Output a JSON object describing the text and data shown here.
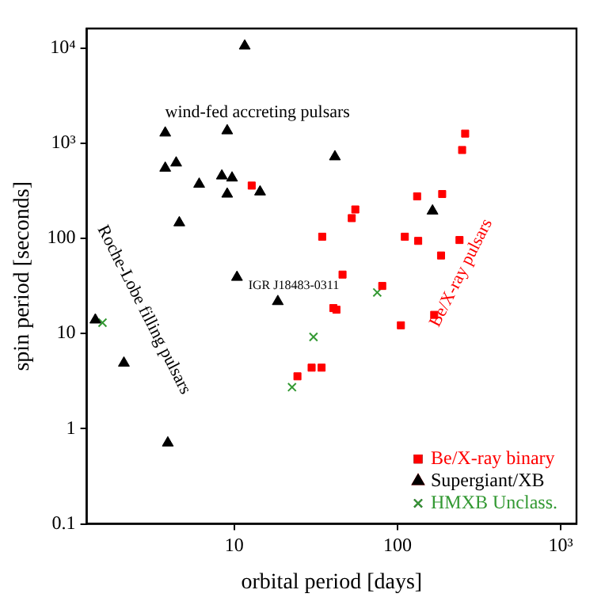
{
  "chart_data": {
    "type": "scatter",
    "xlabel": "orbital period [days]",
    "ylabel": "spin period [seconds]",
    "log": "xy",
    "grid": false,
    "legend": "bottom right",
    "xlim": [
      1.25,
      1250
    ],
    "xticks": [
      10,
      100,
      {
        "value": 1000,
        "label": "10³"
      }
    ],
    "ylim": [
      0.1,
      16000
    ],
    "yticks": [
      0.1,
      1,
      10,
      100,
      {
        "value": 1000,
        "label": "10³"
      },
      {
        "value": 10000,
        "label": "10⁴"
      }
    ],
    "series": [
      {
        "name": "Be/X-ray binary",
        "color": "#ff0000",
        "marker": "square",
        "x": [
          12.8,
          34.6,
          260,
          249,
          132,
          188,
          55.2,
          52.5,
          111,
          134,
          240,
          185,
          46.1,
          80.7,
          40.5,
          42.3,
          105,
          168,
          29.8,
          34.3,
          24.4
        ],
        "values": [
          358,
          104,
          1260,
          847,
          276,
          292,
          201,
          163,
          104,
          94,
          96,
          66,
          41.6,
          31.6,
          18.5,
          17.8,
          12.2,
          15.7,
          4.38,
          4.38,
          3.55
        ]
      },
      {
        "name": "Supergiant/XB",
        "color": "#000000",
        "marker": "triangle",
        "x": [
          11.6,
          3.78,
          9.06,
          3.78,
          4.41,
          6.1,
          8.4,
          9.7,
          9.06,
          14.4,
          4.61,
          10.4,
          18.5,
          41.4,
          164,
          1.41,
          2.11,
          3.92
        ],
        "values": [
          10500,
          1280,
          1350,
          547,
          620,
          371,
          453,
          431,
          292,
          308,
          146,
          39,
          21.7,
          720,
          194,
          13.9,
          4.9,
          0.71
        ]
      },
      {
        "name": "HMXB Unclass.",
        "color": "#339933",
        "marker": "cross",
        "x": [
          1.56,
          22.6,
          30.6,
          75.2
        ],
        "values": [
          13,
          2.73,
          9.2,
          27
        ]
      }
    ],
    "annotations": [
      "wind-fed accreting pulsars",
      "Roche-Lobe filling pulsars",
      "IGR J18483-0311",
      "Be/X-ray pulsars"
    ]
  }
}
